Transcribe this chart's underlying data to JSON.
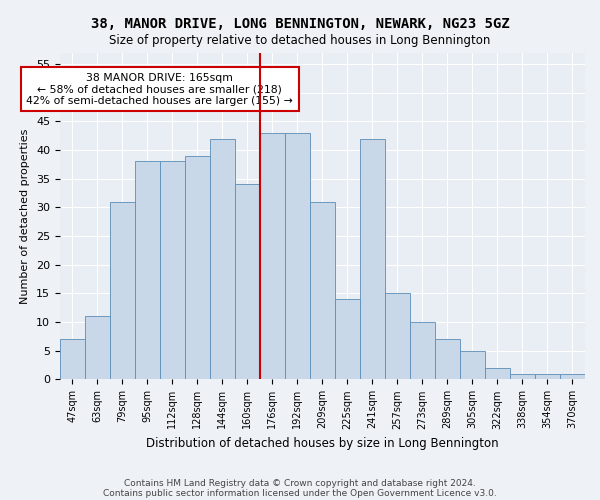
{
  "title": "38, MANOR DRIVE, LONG BENNINGTON, NEWARK, NG23 5GZ",
  "subtitle": "Size of property relative to detached houses in Long Bennington",
  "xlabel": "Distribution of detached houses by size in Long Bennington",
  "ylabel": "Number of detached properties",
  "categories": [
    "47sqm",
    "63sqm",
    "79sqm",
    "95sqm",
    "112sqm",
    "128sqm",
    "144sqm",
    "160sqm",
    "176sqm",
    "192sqm",
    "209sqm",
    "225sqm",
    "241sqm",
    "257sqm",
    "273sqm",
    "289sqm",
    "305sqm",
    "322sqm",
    "338sqm",
    "354sqm",
    "370sqm"
  ],
  "values": [
    7,
    11,
    31,
    38,
    38,
    39,
    42,
    34,
    43,
    43,
    31,
    14,
    42,
    15,
    10,
    7,
    5,
    2,
    1,
    1,
    1
  ],
  "bar_color": "#c8d8e8",
  "bar_edge_color": "#5b8db8",
  "vline_x": 8.0,
  "vline_color": "#cc0000",
  "annotation_text": "38 MANOR DRIVE: 165sqm\n← 58% of detached houses are smaller (218)\n42% of semi-detached houses are larger (155) →",
  "annotation_box_color": "#ffffff",
  "annotation_box_edge_color": "#cc0000",
  "ylim": [
    0,
    57
  ],
  "yticks": [
    0,
    5,
    10,
    15,
    20,
    25,
    30,
    35,
    40,
    45,
    50,
    55
  ],
  "bg_color": "#e8eef4",
  "grid_color": "#ffffff",
  "footer1": "Contains HM Land Registry data © Crown copyright and database right 2024.",
  "footer2": "Contains public sector information licensed under the Open Government Licence v3.0.",
  "title_fontsize": 10,
  "subtitle_fontsize": 8.5
}
